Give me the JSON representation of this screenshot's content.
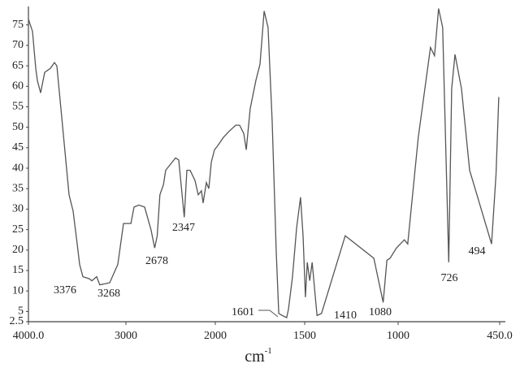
{
  "chart_data": {
    "type": "line",
    "x_label": "cm",
    "x_label_sup": "-1",
    "xlim": [
      4000,
      450
    ],
    "xticks": [
      {
        "value": 4000,
        "label": "4000.0"
      },
      3000,
      2000,
      1500,
      1000,
      {
        "value": 450,
        "label": "450.0"
      }
    ],
    "ylim": [
      2.5,
      79.5
    ],
    "yticks": [
      2.5,
      5,
      10,
      15,
      20,
      25,
      30,
      35,
      40,
      45,
      50,
      55,
      60,
      65,
      70,
      75
    ],
    "series": [
      {
        "color": "#555555",
        "x": [
          4000,
          3958,
          3925,
          3908,
          3875,
          3833,
          3775,
          3733,
          3708,
          3583,
          3542,
          3500,
          3475,
          3442,
          3376,
          3350,
          3300,
          3268,
          3167,
          3083,
          3025,
          2945,
          2909,
          2855,
          2791,
          2720,
          2678,
          2650,
          2620,
          2580,
          2555,
          2482,
          2445,
          2409,
          2347,
          2318,
          2282,
          2227,
          2191,
          2155,
          2136,
          2100,
          2073,
          2045,
          2009,
          1986,
          1955,
          1923,
          1886,
          1864,
          1841,
          1827,
          1805,
          1773,
          1750,
          1727,
          1705,
          1682,
          1659,
          1645,
          1625,
          1601,
          1591,
          1568,
          1545,
          1523,
          1509,
          1496,
          1486,
          1473,
          1460,
          1434,
          1410,
          1283,
          1130,
          1080,
          1060,
          1043,
          1009,
          966,
          948,
          891,
          825,
          803,
          781,
          759,
          726,
          710,
          692,
          657,
          613,
          494,
          470,
          455
        ],
        "values": [
          76.4,
          73.4,
          64.4,
          61.4,
          58.4,
          63.4,
          64.4,
          65.8,
          65,
          33.5,
          29.5,
          21.5,
          16.5,
          13.5,
          13,
          12.5,
          13.5,
          11.5,
          12,
          16.5,
          26.5,
          26.5,
          30.5,
          31,
          30.5,
          25,
          20.5,
          23.5,
          33.5,
          36,
          39.5,
          41.5,
          42.5,
          42,
          28,
          39.5,
          39.5,
          37,
          33.5,
          34.5,
          31.5,
          36.5,
          35,
          41.5,
          44.5,
          45.5,
          47.5,
          49,
          50.5,
          50.5,
          48.5,
          44.5,
          54.5,
          61.4,
          65.4,
          78.4,
          74.4,
          51.4,
          19.5,
          4.5,
          4,
          3.5,
          5.5,
          13.5,
          25.5,
          32.9,
          23.5,
          8.5,
          17,
          12.5,
          17,
          4,
          4.5,
          23.5,
          18,
          7.2,
          17.5,
          18,
          20.5,
          22.5,
          21.5,
          47.5,
          69.5,
          67.5,
          79,
          74.4,
          17,
          59.4,
          67.8,
          59.4,
          39.5,
          21.5,
          38.5,
          57.4
        ]
      }
    ],
    "annotations": [
      "3376",
      "3268",
      "2678",
      "2347",
      "1601",
      "1410",
      "1080",
      "726",
      "494"
    ]
  }
}
